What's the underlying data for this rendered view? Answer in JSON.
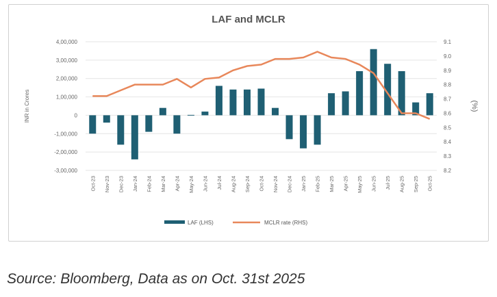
{
  "chart_data": {
    "type": "bar+line",
    "title": "LAF and MCLR",
    "ylabel": "INR in Crores",
    "y2label": "(%)",
    "categories": [
      "Oct-23",
      "Nov-23",
      "Dec-23",
      "Jan-24",
      "Feb-24",
      "Mar-24",
      "Apr-24",
      "May-24",
      "Jun-24",
      "Jul-24",
      "Aug-24",
      "Sep-24",
      "Oct-24",
      "Nov-24",
      "Dec-24",
      "Jan-25",
      "Feb-25",
      "Mar-25",
      "Apr-25",
      "May-25",
      "Jun-25",
      "Jul-25",
      "Aug-25",
      "Sep-25",
      "Oct-25"
    ],
    "ylim": [
      -300000,
      400000
    ],
    "y2lim": [
      8.2,
      9.1
    ],
    "yticks": [
      400000,
      300000,
      200000,
      100000,
      0,
      -100000,
      -200000,
      -300000
    ],
    "ytick_labels": [
      "4,00,000",
      "3,00,000",
      "2,00,000",
      "1,00,000",
      "0",
      "-1,00,000",
      "-2,00,000",
      "-3,00,000"
    ],
    "y2ticks": [
      "9.1",
      "9.0",
      "8.9",
      "8.8",
      "8.7",
      "8.6",
      "8.5",
      "8.4",
      "8.3",
      "8.2"
    ],
    "grid": true,
    "legend_position": "bottom",
    "series": [
      {
        "name": "LAF (LHS)",
        "type": "bar",
        "color": "#1f5f73",
        "values": [
          -100000,
          -40000,
          -160000,
          -240000,
          -90000,
          40000,
          -100000,
          2000,
          20000,
          160000,
          140000,
          140000,
          145000,
          40000,
          -130000,
          -180000,
          -160000,
          120000,
          130000,
          240000,
          360000,
          280000,
          240000,
          70000,
          120000
        ]
      },
      {
        "name": "MCLR rate (RHS)",
        "type": "line",
        "color": "#e8875a",
        "values": [
          8.72,
          8.72,
          8.76,
          8.8,
          8.8,
          8.8,
          8.84,
          8.78,
          8.84,
          8.85,
          8.9,
          8.93,
          8.94,
          8.98,
          8.98,
          8.99,
          9.03,
          8.99,
          8.98,
          8.94,
          8.88,
          8.74,
          8.6,
          8.6,
          8.56
        ]
      }
    ]
  },
  "source": "Source: Bloomberg, Data as on Oct. 31st 2025"
}
